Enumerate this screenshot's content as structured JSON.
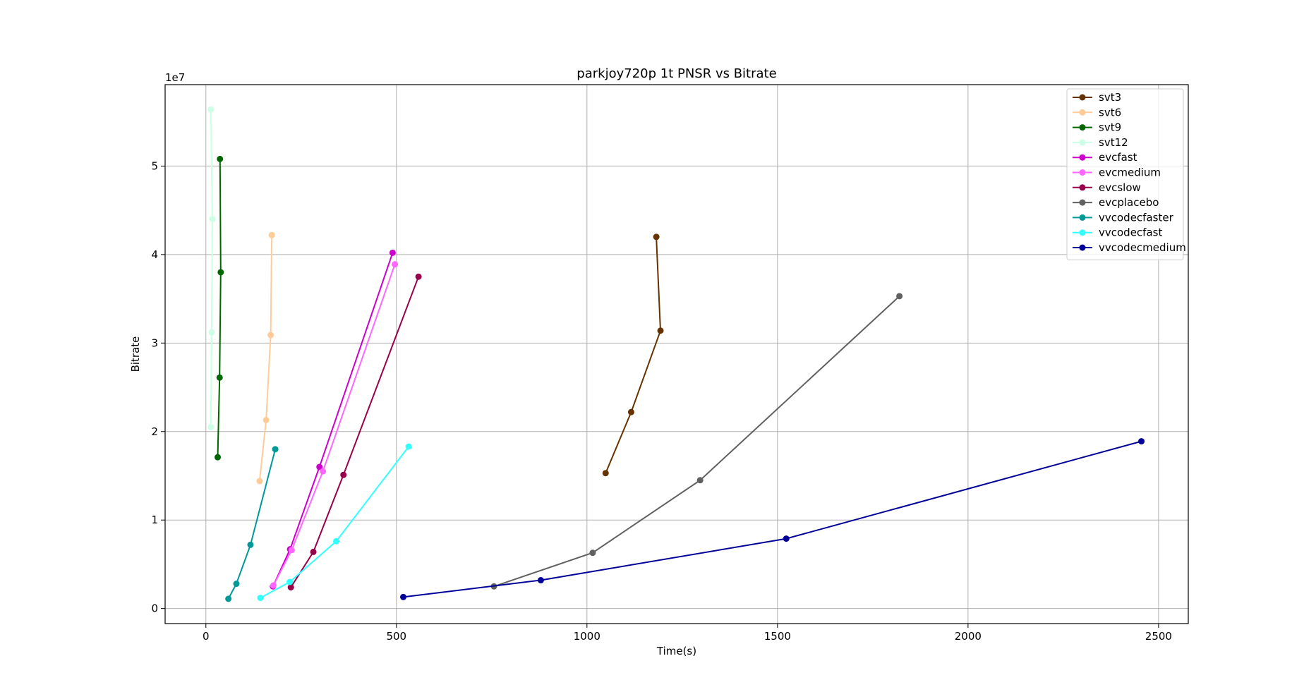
{
  "chart_data": {
    "type": "line",
    "title": "parkjoy720p 1t PNSR vs Bitrate",
    "xlabel": "Time(s)",
    "ylabel": "Bitrate",
    "y_offset_label": "1e7",
    "xlim": [
      -107,
      2578
    ],
    "ylim": [
      -1700000,
      59200000
    ],
    "x_ticks": [
      0,
      500,
      1000,
      1500,
      2000,
      2500
    ],
    "x_tick_labels": [
      "0",
      "500",
      "1000",
      "1500",
      "2000",
      "2500"
    ],
    "y_ticks": [
      0,
      10000000,
      20000000,
      30000000,
      40000000,
      50000000
    ],
    "y_tick_labels": [
      "0",
      "1",
      "2",
      "3",
      "4",
      "5"
    ],
    "grid": true,
    "legend_position": "top-right",
    "series": [
      {
        "name": "svt3",
        "color": "#663300",
        "x": [
          1049,
          1116,
          1193,
          1182
        ],
        "y": [
          15300000,
          22200000,
          31400000,
          42000000
        ]
      },
      {
        "name": "svt6",
        "color": "#ffcc99",
        "x": [
          141,
          158,
          170,
          173
        ],
        "y": [
          14400000,
          21300000,
          30900000,
          42200000
        ]
      },
      {
        "name": "svt9",
        "color": "#006600",
        "x": [
          31,
          36,
          39,
          37
        ],
        "y": [
          17100000,
          26100000,
          38000000,
          50800000
        ]
      },
      {
        "name": "svt12",
        "color": "#ccffe5",
        "x": [
          13,
          15,
          17,
          13
        ],
        "y": [
          20500000,
          31200000,
          44000000,
          56400000
        ]
      },
      {
        "name": "evcfast",
        "color": "#cc00cc",
        "x": [
          176,
          221,
          298,
          490
        ],
        "y": [
          2500000,
          6700000,
          16000000,
          40200000
        ]
      },
      {
        "name": "evcmedium",
        "color": "#ff66ff",
        "x": [
          177,
          225,
          307,
          496
        ],
        "y": [
          2600000,
          6600000,
          15500000,
          38900000
        ]
      },
      {
        "name": "evcslow",
        "color": "#99004c",
        "x": [
          223,
          282,
          361,
          558
        ],
        "y": [
          2400000,
          6400000,
          15100000,
          37500000
        ]
      },
      {
        "name": "evcplacebo",
        "color": "#606060",
        "x": [
          756,
          1015,
          1297,
          1820
        ],
        "y": [
          2500000,
          6300000,
          14500000,
          35300000
        ]
      },
      {
        "name": "vvcodecfaster",
        "color": "#009999",
        "x": [
          59,
          80,
          117,
          182
        ],
        "y": [
          1100000,
          2800000,
          7200000,
          18000000
        ]
      },
      {
        "name": "vvcodecfast",
        "color": "#33ffff",
        "x": [
          143,
          220,
          342,
          532
        ],
        "y": [
          1200000,
          3000000,
          7600000,
          18300000
        ]
      },
      {
        "name": "vvcodecmedium",
        "color": "#000099",
        "x": [
          518,
          879,
          1523,
          2455
        ],
        "y": [
          1300000,
          3200000,
          7900000,
          18900000
        ]
      }
    ]
  }
}
